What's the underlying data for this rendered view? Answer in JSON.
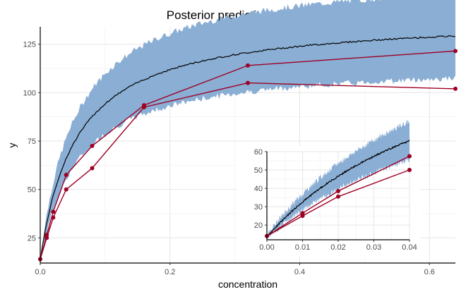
{
  "chart_data": [
    {
      "type": "area",
      "title": "Posterior predictive distribution",
      "xlabel": "concentration",
      "ylabel": "y",
      "xlim": [
        0,
        0.64
      ],
      "ylim": [
        12,
        134
      ],
      "x_ticks": [
        0.0,
        0.2,
        0.4,
        0.6
      ],
      "x_tick_labels": [
        "0.0",
        "0.2",
        "0.4",
        "0.6"
      ],
      "y_ticks": [
        25,
        50,
        75,
        100,
        125
      ],
      "y_tick_labels": [
        "25",
        "50",
        "75",
        "100",
        "125"
      ],
      "grid": true,
      "colors": {
        "band": "#8aaed4",
        "median": "#000000",
        "observed": "#9e0024",
        "grid": "#e5e5e5"
      },
      "band_model": {
        "ymax": 139.4,
        "k": 0.056,
        "lower_scale": 0.82,
        "upper_scale": 1.18,
        "y0": 13.5
      },
      "observed_series": [
        {
          "x": [
            0.0,
            0.01,
            0.02,
            0.04,
            0.08,
            0.16,
            0.32,
            0.64
          ],
          "y": [
            14,
            26.5,
            38.5,
            57.5,
            72.5,
            93.5,
            114,
            121.5
          ]
        },
        {
          "x": [
            0.0,
            0.01,
            0.02,
            0.04,
            0.08,
            0.16,
            0.32,
            0.64
          ],
          "y": [
            14,
            25,
            35.5,
            50,
            61,
            92.5,
            105,
            102
          ]
        }
      ]
    },
    {
      "type": "area",
      "inset": true,
      "xlim": [
        0,
        0.04
      ],
      "ylim": [
        12,
        60
      ],
      "x_ticks": [
        0.0,
        0.01,
        0.02,
        0.03,
        0.04
      ],
      "x_tick_labels": [
        "0.00",
        "0.01",
        "0.02",
        "0.03",
        "0.04"
      ],
      "y_ticks": [
        20,
        30,
        40,
        50,
        60
      ],
      "y_tick_labels": [
        "20",
        "30",
        "40",
        "50",
        "60"
      ],
      "grid": true
    }
  ]
}
